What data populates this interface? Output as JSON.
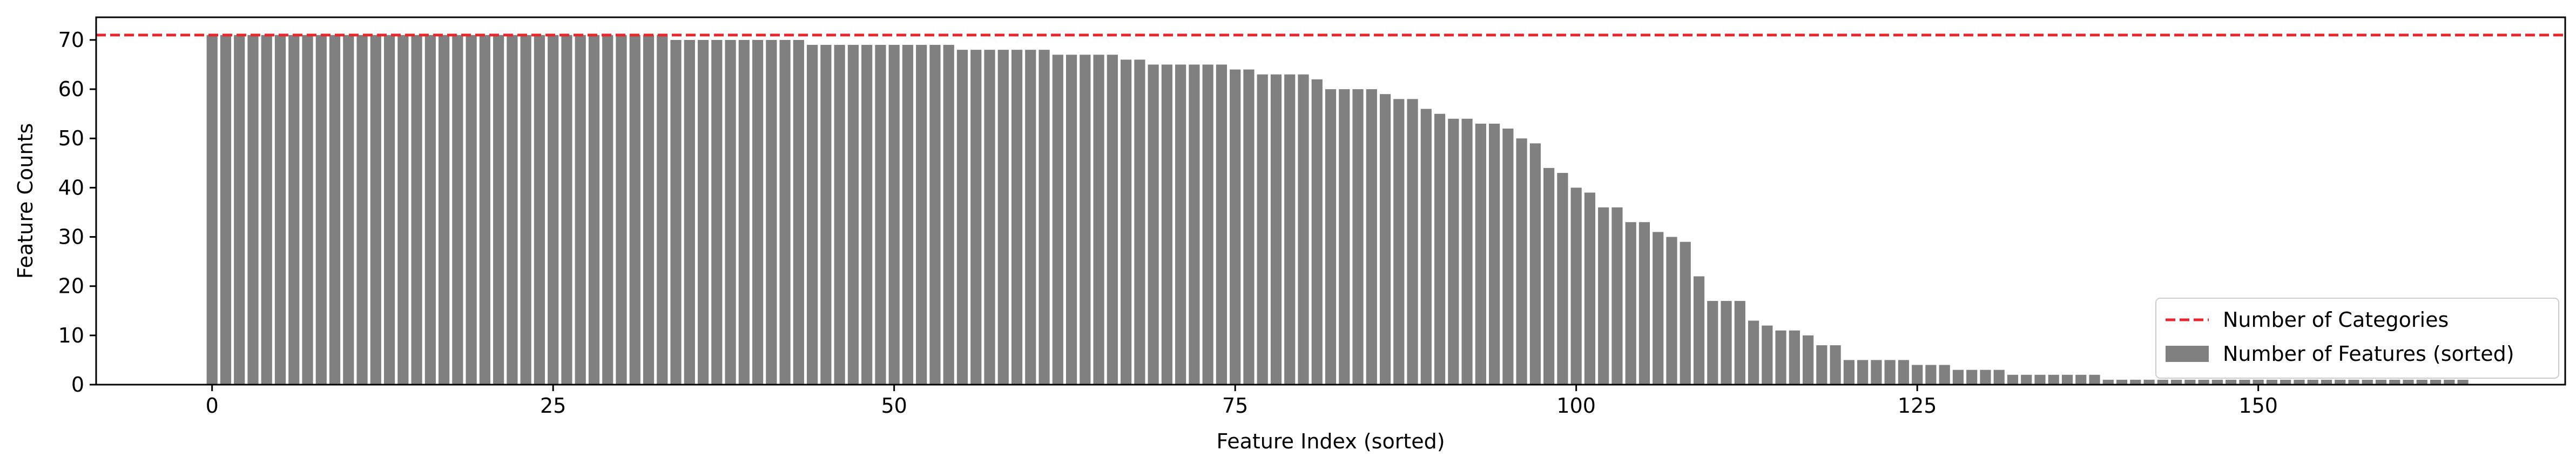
{
  "chart_data": {
    "type": "bar",
    "title": "",
    "xlabel": "Feature Index (sorted)",
    "ylabel": "Feature Counts",
    "xlim": [
      -8.5,
      172.5
    ],
    "ylim": [
      0,
      74.6
    ],
    "xticks": [
      0,
      25,
      50,
      75,
      100,
      125,
      150
    ],
    "yticks": [
      0,
      10,
      20,
      30,
      40,
      50,
      60,
      70
    ],
    "grid": false,
    "legend_position": "lower right",
    "reference_line": {
      "name": "Number of Categories",
      "value": 71,
      "color": "#e8262b",
      "style": "dashed"
    },
    "series": [
      {
        "name": "Number of Features (sorted)",
        "color": "#808080",
        "values": [
          71,
          71,
          71,
          71,
          71,
          71,
          71,
          71,
          71,
          71,
          71,
          71,
          71,
          71,
          71,
          71,
          71,
          71,
          71,
          71,
          71,
          71,
          71,
          71,
          71,
          71,
          71,
          71,
          71,
          71,
          71,
          71,
          71,
          71,
          70,
          70,
          70,
          70,
          70,
          70,
          70,
          70,
          70,
          70,
          69,
          69,
          69,
          69,
          69,
          69,
          69,
          69,
          69,
          69,
          69,
          68,
          68,
          68,
          68,
          68,
          68,
          68,
          67,
          67,
          67,
          67,
          67,
          66,
          66,
          65,
          65,
          65,
          65,
          65,
          65,
          64,
          64,
          63,
          63,
          63,
          63,
          62,
          60,
          60,
          60,
          60,
          59,
          58,
          58,
          56,
          55,
          54,
          54,
          53,
          53,
          52,
          50,
          49,
          44,
          43,
          40,
          39,
          36,
          36,
          33,
          33,
          31,
          30,
          29,
          22,
          17,
          17,
          17,
          13,
          12,
          11,
          11,
          10,
          8,
          8,
          5,
          5,
          5,
          5,
          5,
          4,
          4,
          4,
          3,
          3,
          3,
          3,
          2,
          2,
          2,
          2,
          2,
          2,
          2,
          1,
          1,
          1,
          1,
          1,
          1,
          1,
          1,
          1,
          1,
          1,
          1,
          1,
          1,
          1,
          1,
          1,
          1,
          1,
          1,
          1,
          1,
          1,
          1,
          1,
          1,
          1
        ]
      }
    ]
  }
}
